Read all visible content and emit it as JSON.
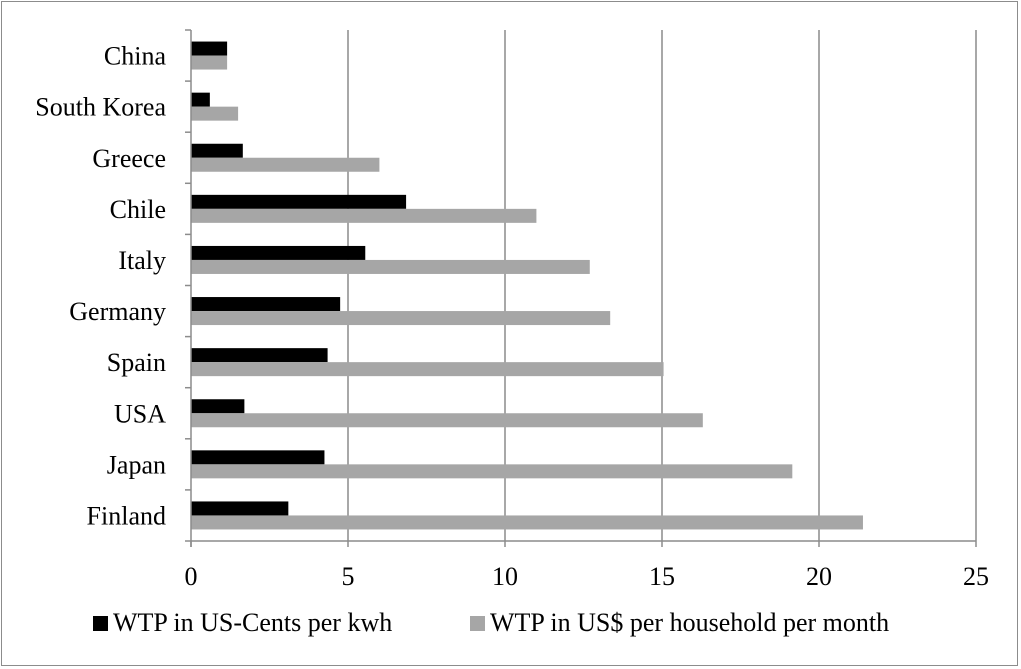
{
  "chart_data": {
    "type": "bar",
    "orientation": "horizontal",
    "title": "",
    "xlabel": "",
    "ylabel": "",
    "categories": [
      "China",
      "South Korea",
      "Greece",
      "Chile",
      "Italy",
      "Germany",
      "Spain",
      "USA",
      "Japan",
      "Finland"
    ],
    "series": [
      {
        "name": "WTP in US-Cents per kwh",
        "color": "#000000",
        "values": [
          1.15,
          0.6,
          1.65,
          6.85,
          5.55,
          4.75,
          4.35,
          1.7,
          4.25,
          3.1
        ]
      },
      {
        "name": "WTP in US$ per household per month",
        "color": "#a6a6a6",
        "values": [
          1.15,
          1.5,
          6.0,
          11.0,
          12.7,
          13.35,
          15.05,
          16.3,
          19.15,
          21.4
        ]
      }
    ],
    "xlim": [
      0,
      25
    ],
    "xticks": [
      "0",
      "5",
      "10",
      "15",
      "20",
      "25"
    ],
    "grid": "vertical",
    "legend": "bottom"
  }
}
